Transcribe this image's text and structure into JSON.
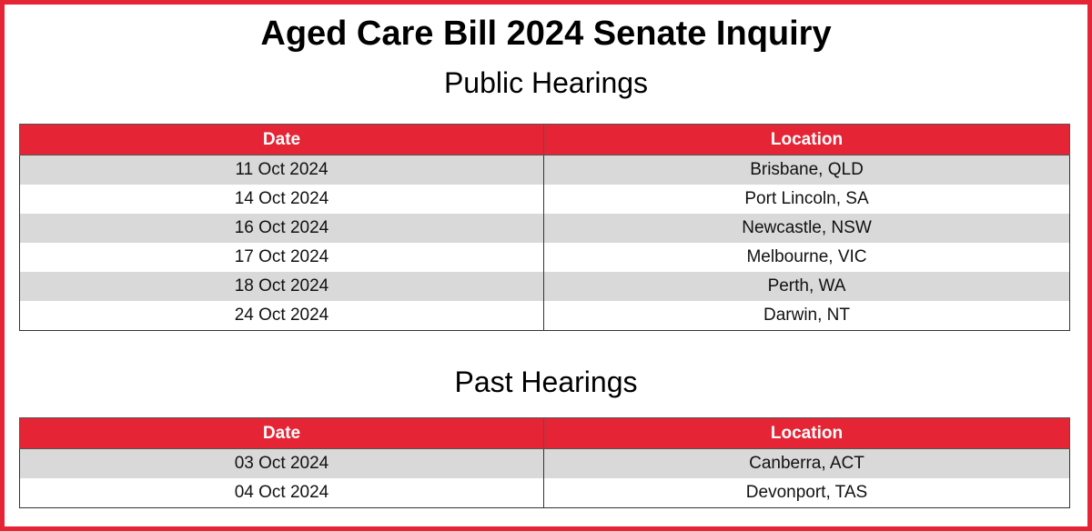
{
  "title": "Aged Care Bill 2024 Senate Inquiry",
  "colors": {
    "accent": "#e52535",
    "stripe": "#d9d9d9"
  },
  "public_hearings": {
    "heading": "Public Hearings",
    "columns": [
      "Date",
      "Location"
    ],
    "rows": [
      {
        "date": "11 Oct 2024",
        "location": "Brisbane, QLD"
      },
      {
        "date": "14 Oct 2024",
        "location": "Port Lincoln, SA"
      },
      {
        "date": "16 Oct 2024",
        "location": "Newcastle, NSW"
      },
      {
        "date": "17 Oct 2024",
        "location": "Melbourne, VIC"
      },
      {
        "date": "18 Oct 2024",
        "location": "Perth, WA"
      },
      {
        "date": "24 Oct 2024",
        "location": "Darwin, NT"
      }
    ]
  },
  "past_hearings": {
    "heading": "Past Hearings",
    "columns": [
      "Date",
      "Location"
    ],
    "rows": [
      {
        "date": "03 Oct 2024",
        "location": "Canberra, ACT"
      },
      {
        "date": "04 Oct 2024",
        "location": "Devonport, TAS"
      }
    ]
  }
}
